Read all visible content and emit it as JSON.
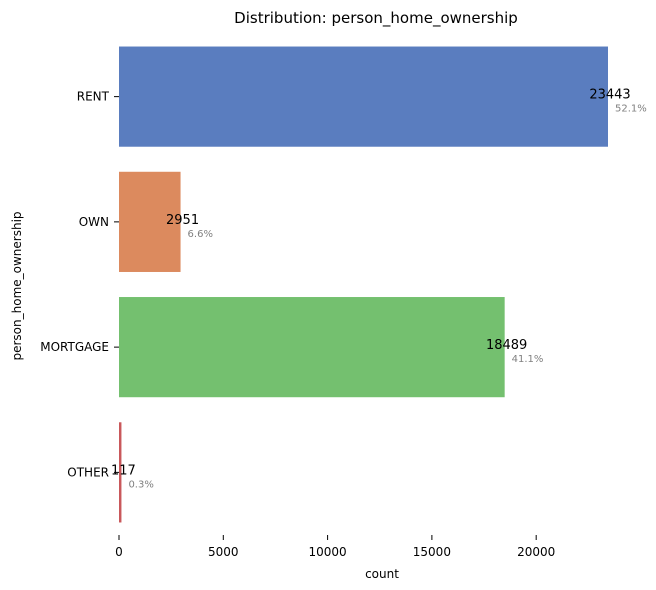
{
  "chart_data": {
    "type": "bar",
    "orientation": "horizontal",
    "title": "Distribution: person_home_ownership",
    "xlabel": "count",
    "ylabel": "person_home_ownership",
    "categories": [
      "RENT",
      "OWN",
      "MORTGAGE",
      "OTHER"
    ],
    "values": [
      23443,
      2951,
      18489,
      117
    ],
    "value_labels": [
      "23443",
      "2951",
      "18489",
      "117"
    ],
    "percent_labels": [
      "52.1%",
      "6.6%",
      "41.1%",
      "0.3%"
    ],
    "colors": [
      "#5a7dbf",
      "#dc8a5e",
      "#74c06f",
      "#c9585b"
    ],
    "x_ticks": [
      0,
      5000,
      10000,
      15000,
      20000
    ],
    "x_tick_labels": [
      "0",
      "5000",
      "10000",
      "15000",
      "20000"
    ],
    "xlim": [
      0,
      23443
    ],
    "grid": false,
    "legend": "none"
  }
}
